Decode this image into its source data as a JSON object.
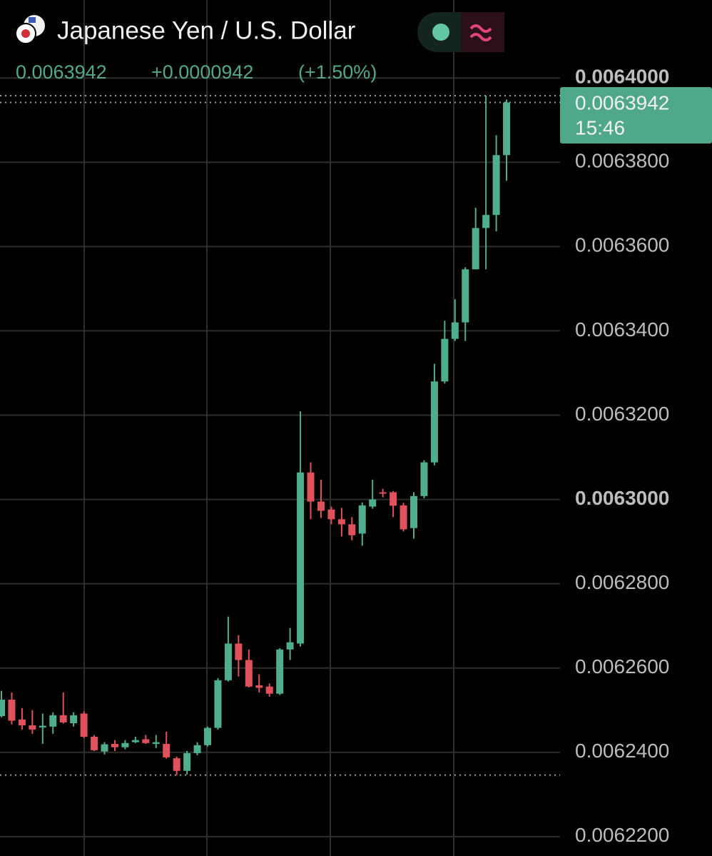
{
  "header": {
    "symbol": "Japanese Yen / U.S. Dollar",
    "price": "0.0063942",
    "change": "+0.0000942",
    "change_percent": "(+1.50%)"
  },
  "price_tag": {
    "price": "0.0063942",
    "countdown": "15:46"
  },
  "chart_data": {
    "type": "candlestick",
    "up_color": "#4fae8e",
    "down_color": "#e0525b",
    "grid": true,
    "ylim": [
      0.0062154,
      0.0064185
    ],
    "yticks": [
      {
        "value": 0.0064,
        "label": "0.0064000"
      },
      {
        "value": 0.00638,
        "label": "0.0063800"
      },
      {
        "value": 0.00636,
        "label": "0.0063600"
      },
      {
        "value": 0.00634,
        "label": "0.0063400"
      },
      {
        "value": 0.00632,
        "label": "0.0063200"
      },
      {
        "value": 0.0063,
        "label": "0.0063000"
      },
      {
        "value": 0.00628,
        "label": "0.0062800"
      },
      {
        "value": 0.00626,
        "label": "0.0062600"
      },
      {
        "value": 0.00624,
        "label": "0.0062400"
      },
      {
        "value": 0.00622,
        "label": "0.0062200"
      }
    ],
    "open": [
      0.0062486,
      0.0062525,
      0.0062478,
      0.0062464,
      0.0062459,
      0.0062461,
      0.0062488,
      0.0062469,
      0.0062492,
      0.0062437,
      0.0062402,
      0.006242,
      0.0062412,
      0.0062424,
      0.0062431,
      0.006242,
      0.006242,
      0.0062386,
      0.0062356,
      0.0062398,
      0.0062417,
      0.0062458,
      0.0062571,
      0.0062658,
      0.0062619,
      0.0062559,
      0.0062556,
      0.0062539,
      0.0062644,
      0.0062658,
      0.0063064,
      0.0062995,
      0.0062976,
      0.0062953,
      0.0062941,
      0.0062919,
      0.0062983,
      0.0063017,
      0.0063017,
      0.0062986,
      0.0062932,
      0.0063008,
      0.0063088,
      0.006328,
      0.0063381,
      0.006342,
      0.0063546,
      0.0063644,
      0.0063675,
      0.0063817
    ],
    "high": [
      0.0062546,
      0.0062542,
      0.0062505,
      0.00625,
      0.0062492,
      0.0062495,
      0.0062542,
      0.0062495,
      0.0062497,
      0.0062441,
      0.0062424,
      0.0062429,
      0.0062429,
      0.0062437,
      0.0062441,
      0.0062441,
      0.0062449,
      0.006239,
      0.0062403,
      0.0062424,
      0.0062461,
      0.0062576,
      0.0062722,
      0.0062678,
      0.0062644,
      0.0062585,
      0.0062563,
      0.0062647,
      0.0062695,
      0.0063209,
      0.0063088,
      0.0063047,
      0.0062983,
      0.006298,
      0.0062958,
      0.0062993,
      0.0063047,
      0.0063025,
      0.006302,
      0.0062992,
      0.0063017,
      0.0063093,
      0.0063322,
      0.0063424,
      0.0063475,
      0.0063551,
      0.0063692,
      0.0063958,
      0.0063864,
      0.0063949
    ],
    "low": [
      0.0062483,
      0.0062466,
      0.0062454,
      0.0062444,
      0.006242,
      0.0062444,
      0.0062468,
      0.0062461,
      0.0062434,
      0.0062403,
      0.0062395,
      0.0062403,
      0.0062407,
      0.0062422,
      0.006242,
      0.006241,
      0.0062385,
      0.0062346,
      0.0062347,
      0.0062393,
      0.0062414,
      0.0062454,
      0.0062568,
      0.006258,
      0.0062554,
      0.0062542,
      0.0062532,
      0.0062536,
      0.0062619,
      0.0062651,
      0.0062953,
      0.0062956,
      0.0062941,
      0.0062912,
      0.0062903,
      0.006289,
      0.0062978,
      0.0063005,
      0.0062958,
      0.0062924,
      0.0062907,
      0.0063003,
      0.0063081,
      0.0063275,
      0.0063376,
      0.0063376,
      0.0063546,
      0.0063546,
      0.0063636,
      0.0063756
    ],
    "close": [
      0.0062525,
      0.0062475,
      0.0062464,
      0.0062454,
      0.0062463,
      0.0062488,
      0.0062471,
      0.0062488,
      0.0062437,
      0.0062405,
      0.0062419,
      0.0062412,
      0.0062422,
      0.0062429,
      0.0062422,
      0.0062424,
      0.0062388,
      0.0062356,
      0.0062398,
      0.0062417,
      0.0062458,
      0.0062571,
      0.0062658,
      0.0062619,
      0.0062556,
      0.0062553,
      0.0062539,
      0.0062644,
      0.0062661,
      0.0063064,
      0.0062995,
      0.0062973,
      0.0062953,
      0.0062941,
      0.0062915,
      0.0062986,
      0.0063,
      0.0063014,
      0.0062985,
      0.0062929,
      0.0063008,
      0.0063088,
      0.006328,
      0.0063381,
      0.006342,
      0.0063546,
      0.0063644,
      0.0063675,
      0.0063817,
      0.0063942
    ]
  }
}
